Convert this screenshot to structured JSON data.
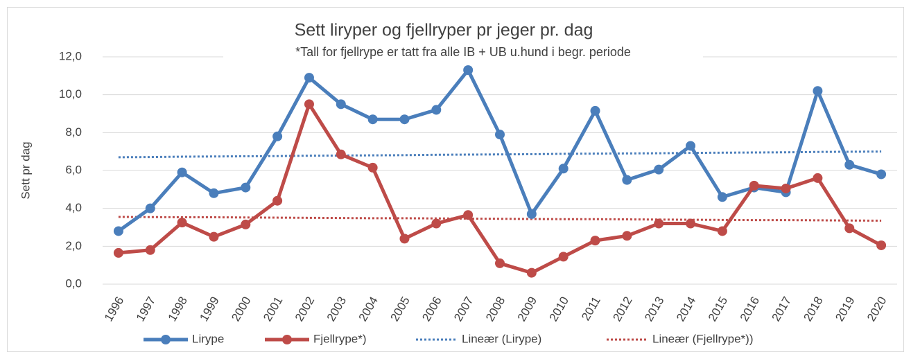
{
  "chart_data": {
    "type": "line",
    "title": "Sett liryper og fjellryper pr jeger pr. dag",
    "subtitle": "*Tall for fjellrype er tatt fra alle IB + UB u.hund i begr. periode",
    "y_label": "Sett pr dag",
    "categories": [
      "1996",
      "1997",
      "1998",
      "1999",
      "2000",
      "2001",
      "2002",
      "2003",
      "2004",
      "2005",
      "2006",
      "2007",
      "2008",
      "2009",
      "2010",
      "2011",
      "2012",
      "2013",
      "2014",
      "2015",
      "2016",
      "2017",
      "2018",
      "2019",
      "2020"
    ],
    "series": [
      {
        "name": "Lirype",
        "color": "#4a7ebb",
        "style": "solid",
        "markers": true,
        "values": [
          2.8,
          4.0,
          5.9,
          4.8,
          5.1,
          7.8,
          10.9,
          9.5,
          8.7,
          8.7,
          9.2,
          11.3,
          7.9,
          3.7,
          6.1,
          9.15,
          5.5,
          6.05,
          7.3,
          4.6,
          5.1,
          4.85,
          10.2,
          6.3,
          5.8
        ]
      },
      {
        "name": "Fjellrype*)",
        "color": "#be4b48",
        "style": "solid",
        "markers": true,
        "values": [
          1.65,
          1.8,
          3.25,
          2.5,
          3.15,
          4.4,
          9.5,
          6.85,
          6.15,
          2.4,
          3.2,
          3.65,
          1.1,
          0.6,
          1.45,
          2.3,
          2.55,
          3.2,
          3.2,
          2.8,
          5.2,
          5.05,
          5.6,
          2.95,
          2.05
        ]
      },
      {
        "name": "Lineær (Lirype)",
        "color": "#4a7ebb",
        "style": "dotted",
        "markers": false,
        "values": [
          6.7,
          6.71,
          6.73,
          6.74,
          6.75,
          6.76,
          6.78,
          6.79,
          6.8,
          6.81,
          6.83,
          6.84,
          6.85,
          6.86,
          6.88,
          6.89,
          6.9,
          6.91,
          6.93,
          6.94,
          6.95,
          6.96,
          6.98,
          6.99,
          7.0
        ]
      },
      {
        "name": "Lineær (Fjellrype*))",
        "color": "#be4b48",
        "style": "dotted",
        "markers": false,
        "values": [
          3.55,
          3.54,
          3.53,
          3.53,
          3.52,
          3.51,
          3.5,
          3.49,
          3.48,
          3.48,
          3.47,
          3.46,
          3.45,
          3.44,
          3.43,
          3.43,
          3.42,
          3.41,
          3.4,
          3.39,
          3.38,
          3.38,
          3.37,
          3.36,
          3.35
        ]
      }
    ],
    "ylim": [
      0,
      12
    ],
    "yticks": [
      {
        "value": 0,
        "label": "0,0"
      },
      {
        "value": 2,
        "label": "2,0"
      },
      {
        "value": 4,
        "label": "4,0"
      },
      {
        "value": 6,
        "label": "6,0"
      },
      {
        "value": 8,
        "label": "8,0"
      },
      {
        "value": 10,
        "label": "10,0"
      },
      {
        "value": 12,
        "label": "12,0"
      }
    ],
    "grid": true,
    "legend": "bottom"
  }
}
